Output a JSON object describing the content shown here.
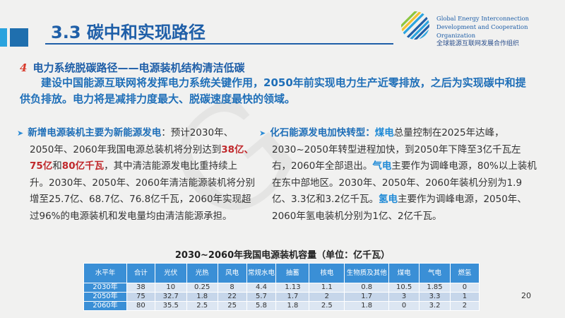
{
  "header": {
    "title": "3.3 碳中和实现路径",
    "logo_en1": "Global Energy Interconnection",
    "logo_en2": "Development and Cooperation Organization",
    "logo_cn": "全球能源互联网发展合作组织"
  },
  "section": {
    "number": "4",
    "subtitle": "电力系统脱碳路径——电源装机结构清洁低碳",
    "lead": "建设中国能源互联网将发挥电力系统关键作用，2050年前实现电力生产近零排放，之后为实现碳中和提供负排放。电力将是减排力度最大、脱碳速度最快的领域。"
  },
  "left": {
    "head": "新增电源装机主要为新能源发电",
    "t1": "：预计2030年、2050年、2060年我国电源总装机将分别达到",
    "v1": "38亿",
    "s1": "、",
    "v2": "75亿",
    "s2": "和",
    "v3": "80亿千瓦",
    "t2": "，其中清洁能源发电比重持续上升。2030年、2050年、2060年清洁能源装机将分别增至25.7亿、68.7亿、76.8亿千瓦，2060年实现超过96%的电源装机和发电量均由清洁能源承担。"
  },
  "right": {
    "head": "化石能源发电加快转型：",
    "k1": "煤电",
    "t1": "总量控制在2025年达峰，2030~2050年转型进程加快，到2050年下降至3亿千瓦左右，2060年全部退出。",
    "k2": "气电",
    "t2": "主要作为调峰电源，80%以上装机在东中部地区。2030年、2050年、2060年装机分别为1.9亿、3.3亿和3.2亿千瓦。",
    "k3": "氢电",
    "t3": "主要作为调峰电源，2050年、2060年氢电装机分别为1亿、2亿千瓦。"
  },
  "table": {
    "title": "2030~2060年我国电源装机容量（单位：亿千瓦）",
    "headers": [
      "水平年",
      "合计",
      "光伏",
      "光热",
      "风电",
      "常规水电",
      "抽蓄",
      "核电",
      "生物质及其他",
      "煤电",
      "气电",
      "燃氢"
    ],
    "rows": [
      [
        "2030年",
        "38",
        "10",
        "0.25",
        "8",
        "4.4",
        "1.13",
        "1.1",
        "0.8",
        "10.5",
        "1.85",
        "0"
      ],
      [
        "2050年",
        "75",
        "32.7",
        "1.8",
        "22",
        "5.7",
        "1.7",
        "2",
        "1.7",
        "3",
        "3.3",
        "1"
      ],
      [
        "2060年",
        "80",
        "35.5",
        "2.5",
        "25",
        "5.8",
        "1.8",
        "2.5",
        "1.8",
        "0",
        "3.2",
        "2"
      ]
    ]
  },
  "page_number": "20",
  "colors": {
    "brand_blue": "#1f5fa8",
    "accent_red": "#c0282b",
    "table_header": "#3a8fd6"
  }
}
